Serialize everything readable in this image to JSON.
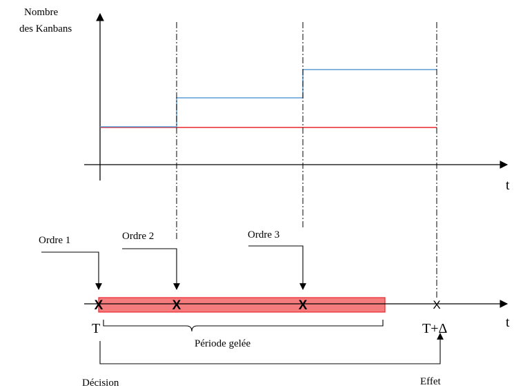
{
  "top_chart": {
    "ylabel_line1": "Nombre",
    "ylabel_line2": "des Kanbans",
    "xlabel": "t",
    "colors": {
      "blue_step": "#5b9bd5",
      "red_level": "#e8262b"
    }
  },
  "timeline": {
    "xlabel": "t",
    "orders": [
      "Ordre 1",
      "Ordre 2",
      "Ordre 3"
    ],
    "marker_glyph": "X",
    "start_label": "T",
    "end_label": "T+Δ",
    "frozen_period_label": "Période gelée",
    "decision_label": "Décision",
    "effect_label": "Effet",
    "colors": {
      "frozen_fill": "#f47c7c",
      "frozen_stroke": "#e8262b"
    }
  }
}
